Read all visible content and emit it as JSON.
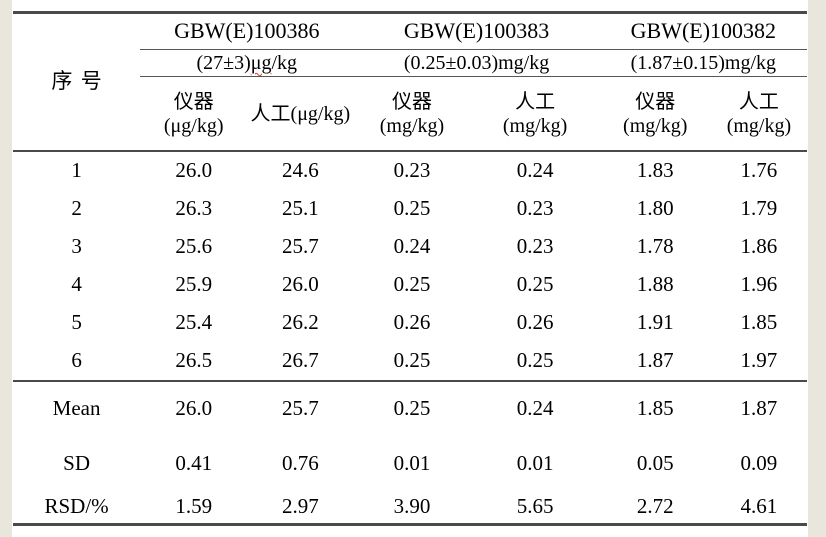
{
  "colors": {
    "page_margin_bg": "#e9e6dc",
    "document_bg": "#ffffff",
    "border_dark": "#4a4a4a",
    "border_thin": "#565656",
    "text": "#000000",
    "spellcheck_red": "#e3372a"
  },
  "table": {
    "corner_header": "序号",
    "groups": [
      {
        "id": "GBW(E)100386",
        "concentration": {
          "pre": "(27±3)",
          "flagged": "μg",
          "post": "/kg"
        },
        "sub_headers": [
          {
            "line1": "仪器",
            "line2": "(μg/kg)"
          },
          {
            "line1": "人工(μg/kg)",
            "line2": ""
          }
        ]
      },
      {
        "id": "GBW(E)100383",
        "concentration": {
          "pre": "(0.25±0.03)",
          "flagged": "",
          "post": "mg/kg"
        },
        "sub_headers": [
          {
            "line1": "仪器",
            "line2": "(mg/kg)"
          },
          {
            "line1": "人工",
            "line2": "(mg/kg)"
          }
        ]
      },
      {
        "id": "GBW(E)100382",
        "concentration": {
          "pre": "(1.87±0.15)",
          "flagged": "",
          "post": "mg/kg"
        },
        "sub_headers": [
          {
            "line1": "仪器",
            "line2": "(mg/kg)"
          },
          {
            "line1": "人工",
            "line2": "(mg/kg)"
          }
        ]
      }
    ],
    "rows": [
      {
        "label": "1",
        "values": [
          "26.0",
          "24.6",
          "0.23",
          "0.24",
          "1.83",
          "1.76"
        ]
      },
      {
        "label": "2",
        "values": [
          "26.3",
          "25.1",
          "0.25",
          "0.23",
          "1.80",
          "1.79"
        ]
      },
      {
        "label": "3",
        "values": [
          "25.6",
          "25.7",
          "0.24",
          "0.23",
          "1.78",
          "1.86"
        ]
      },
      {
        "label": "4",
        "values": [
          "25.9",
          "26.0",
          "0.25",
          "0.25",
          "1.88",
          "1.96"
        ]
      },
      {
        "label": "5",
        "values": [
          "25.4",
          "26.2",
          "0.26",
          "0.26",
          "1.91",
          "1.85"
        ]
      },
      {
        "label": "6",
        "values": [
          "26.5",
          "26.7",
          "0.25",
          "0.25",
          "1.87",
          "1.97"
        ]
      }
    ],
    "stats": [
      {
        "label": "Mean",
        "values": [
          "26.0",
          "25.7",
          "0.25",
          "0.24",
          "1.85",
          "1.87"
        ]
      },
      {
        "label": "SD",
        "values": [
          "0.41",
          "0.76",
          "0.01",
          "0.01",
          "0.05",
          "0.09"
        ]
      },
      {
        "label": "RSD/%",
        "values": [
          "1.59",
          "2.97",
          "3.90",
          "5.65",
          "2.72",
          "4.61"
        ]
      }
    ]
  }
}
